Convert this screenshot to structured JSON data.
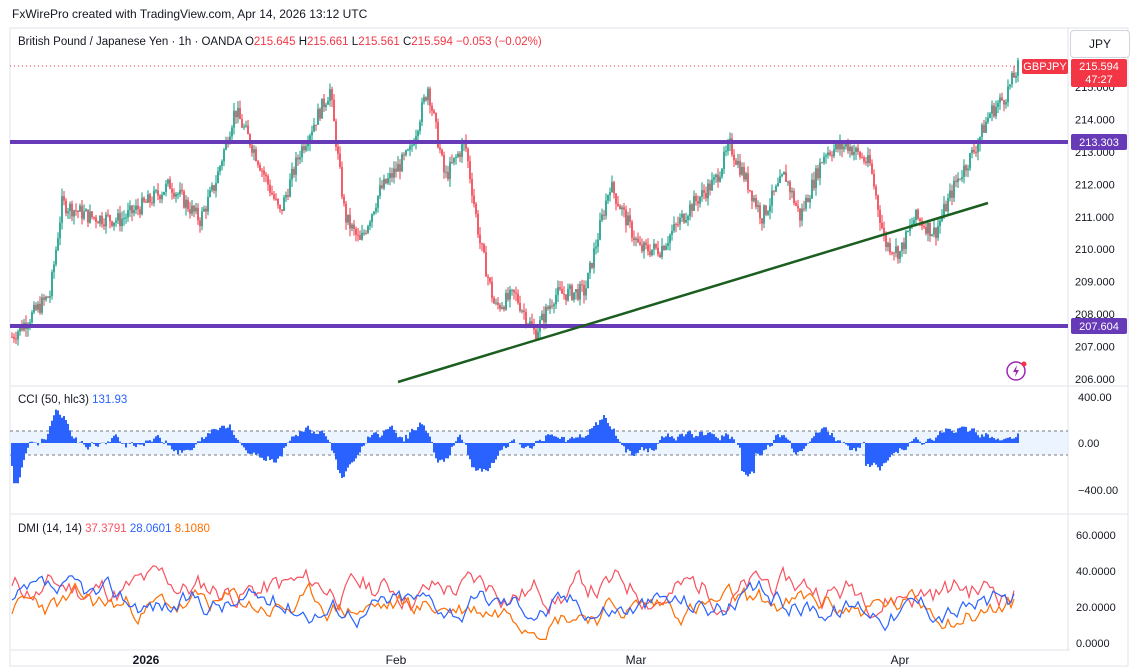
{
  "header": {
    "created_by": "FxWirePro created with TradingView.com, Apr 14, 2026 13:12 UTC"
  },
  "legend": {
    "instrument": "British Pound / Japanese Yen · 1h · OANDA",
    "o_label": "O",
    "o_value": "215.645",
    "h_label": "H",
    "h_value": "215.661",
    "l_label": "L",
    "l_value": "215.561",
    "c_label": "C",
    "c_value": "215.594",
    "change": "−0.053 (−0.02%)"
  },
  "currency_button": "JPY",
  "colors": {
    "up": "#089981",
    "down": "#f23645",
    "level": "#673ab7",
    "trend": "#1b5e20",
    "cci": "#2962ff",
    "dmi_adx": "#f7525f",
    "dmi_plus": "#2962ff",
    "dmi_minus": "#ff6d00"
  },
  "price_axis": {
    "labels": [
      "215.000",
      "214.000",
      "213.000",
      "212.000",
      "211.000",
      "210.000",
      "209.000",
      "208.000",
      "207.000",
      "206.000"
    ],
    "last_symbol": "GBPJPY",
    "last_price": "215.594",
    "countdown": "47:27",
    "level_upper": "213.303",
    "level_lower": "207.604"
  },
  "cci": {
    "title": "CCI (50, hlc3)",
    "value": "131.93",
    "axis": [
      "400.00",
      "0.00",
      "−400.00"
    ]
  },
  "dmi": {
    "title": "DMI (14, 14)",
    "adx": "37.3791",
    "plus": "28.0601",
    "minus": "8.1080",
    "axis": [
      "60.0000",
      "40.0000",
      "20.0000",
      "0.0000"
    ]
  },
  "time_axis": [
    "2026",
    "Feb",
    "Mar",
    "Apr"
  ],
  "chart_data": {
    "type": "line",
    "title": "British Pound / Japanese Yen · 1h · OANDA",
    "ylim": [
      206.0,
      215.9
    ],
    "horizontal_levels": [
      213.303,
      207.604
    ],
    "last_price": 215.594,
    "key_points": [
      {
        "x": "start",
        "y": 207.2
      },
      {
        "x": "early-Jan",
        "y": 211.4
      },
      {
        "x": "mid-Jan",
        "y": 214.2
      },
      {
        "x": "late-Jan",
        "y": 214.9
      },
      {
        "x": "Feb",
        "y": 215.0
      },
      {
        "x": "mid-Feb",
        "y": 207.6
      },
      {
        "x": "late-Feb",
        "y": 207.4
      },
      {
        "x": "Mar",
        "y": 212.0
      },
      {
        "x": "mid-Mar",
        "y": 213.2
      },
      {
        "x": "late-Mar",
        "y": 209.8
      },
      {
        "x": "Apr",
        "y": 212.8
      },
      {
        "x": "mid-Apr",
        "y": 215.594
      }
    ]
  }
}
